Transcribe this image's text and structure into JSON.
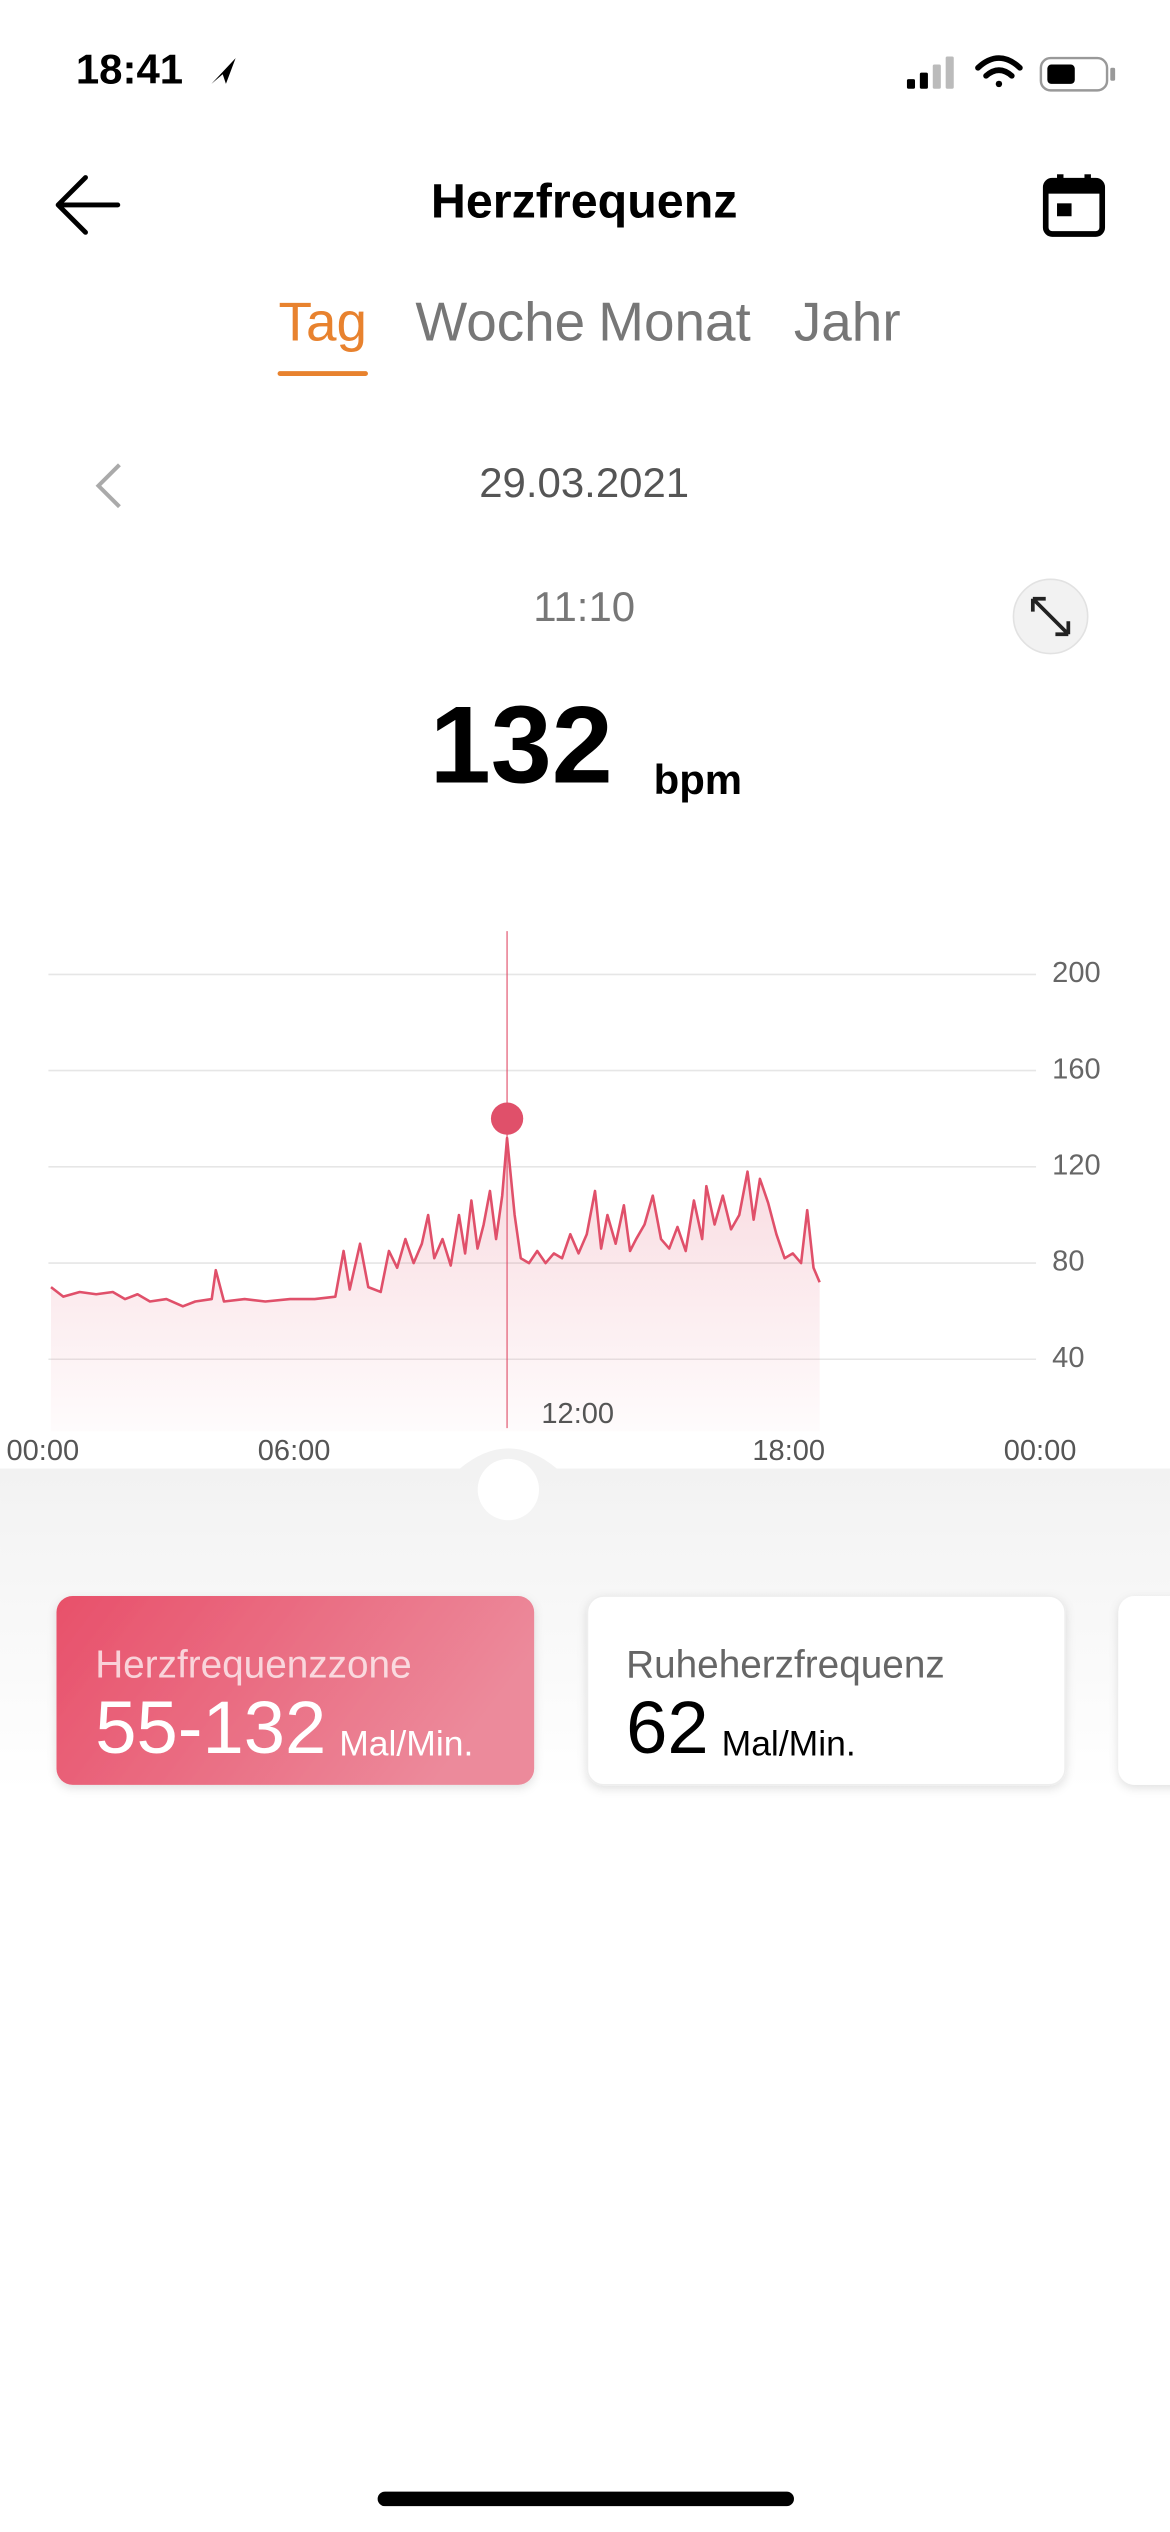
{
  "status_bar": {
    "time": "18:41"
  },
  "header": {
    "title": "Herzfrequenz"
  },
  "tabs": [
    {
      "label": "Tag",
      "active": true
    },
    {
      "label": "Woche",
      "active": false
    },
    {
      "label": "Monat",
      "active": false
    },
    {
      "label": "Jahr",
      "active": false
    }
  ],
  "date": "29.03.2021",
  "selection": {
    "time": "11:10",
    "value": 132,
    "unit": "bpm"
  },
  "chart_data": {
    "type": "line",
    "color": "#e0506a",
    "grid": true,
    "x": [
      0.1,
      0.4,
      0.8,
      1.2,
      1.6,
      1.9,
      2.2,
      2.5,
      2.9,
      3.3,
      3.6,
      4.0,
      4.1,
      4.3,
      4.8,
      5.3,
      5.9,
      6.5,
      7.0,
      7.2,
      7.35,
      7.6,
      7.8,
      8.1,
      8.3,
      8.5,
      8.7,
      8.9,
      9.1,
      9.25,
      9.4,
      9.6,
      9.8,
      10.0,
      10.15,
      10.3,
      10.45,
      10.6,
      10.75,
      10.9,
      11.05,
      11.1667,
      11.35,
      11.5,
      11.7,
      11.9,
      12.1,
      12.3,
      12.5,
      12.7,
      12.9,
      13.1,
      13.3,
      13.45,
      13.6,
      13.8,
      14.0,
      14.15,
      14.3,
      14.5,
      14.7,
      14.9,
      15.1,
      15.3,
      15.5,
      15.7,
      15.9,
      16.0,
      16.2,
      16.4,
      16.6,
      16.8,
      17.0,
      17.15,
      17.3,
      17.5,
      17.7,
      17.9,
      18.1,
      18.3,
      18.45,
      18.6,
      18.75
    ],
    "values": [
      70,
      66,
      68,
      67,
      68,
      65,
      67,
      64,
      65,
      62,
      64,
      65,
      77,
      64,
      65,
      64,
      65,
      65,
      66,
      85,
      69,
      88,
      70,
      68,
      85,
      78,
      90,
      80,
      88,
      100,
      82,
      90,
      79,
      100,
      84,
      106,
      86,
      96,
      110,
      90,
      108,
      132,
      100,
      82,
      80,
      85,
      80,
      84,
      82,
      92,
      84,
      92,
      110,
      86,
      100,
      88,
      104,
      85,
      90,
      96,
      108,
      90,
      86,
      95,
      85,
      106,
      90,
      112,
      96,
      108,
      94,
      100,
      118,
      98,
      115,
      105,
      92,
      82,
      84,
      80,
      102,
      78,
      72
    ],
    "xlim": [
      0,
      24
    ],
    "xticks": [
      {
        "value": 0,
        "label": "00:00"
      },
      {
        "value": 6,
        "label": "06:00"
      },
      {
        "value": 12,
        "label": "12:00"
      },
      {
        "value": 18,
        "label": "18:00"
      },
      {
        "value": 24,
        "label": "00:00"
      }
    ],
    "ylim": [
      10,
      220
    ],
    "yticks": [
      40,
      80,
      120,
      160,
      200
    ]
  },
  "cards": [
    {
      "title": "Herzfrequenzzone",
      "value": "55-132",
      "unit": "Mal/Min.",
      "highlighted": true
    },
    {
      "title": "Ruheherzfrequenz",
      "value": 62,
      "unit": "Mal/Min.",
      "highlighted": false
    }
  ]
}
